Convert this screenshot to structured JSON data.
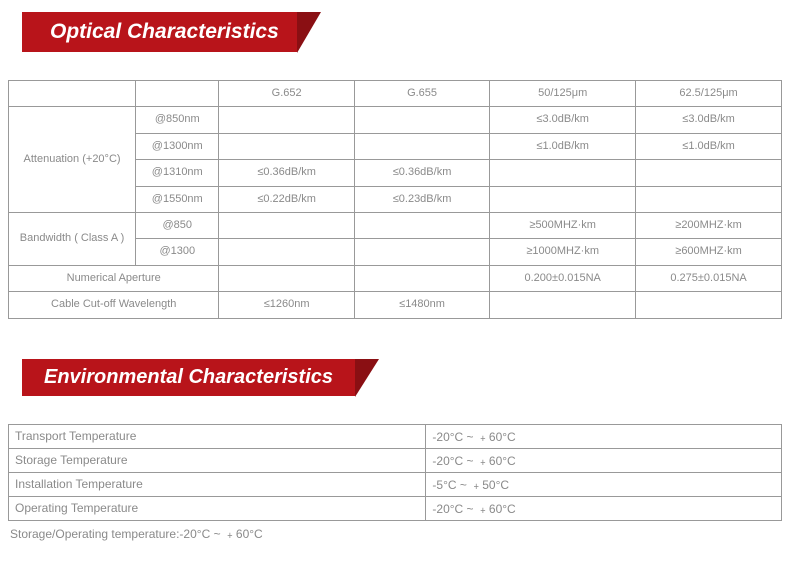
{
  "section1": {
    "title": "Optical Characteristics"
  },
  "section2": {
    "title": "Environmental Characteristics"
  },
  "t1": {
    "headers": [
      "",
      "",
      "G.652",
      "G.655",
      "50/125μm",
      "62.5/125μm"
    ],
    "rowlabels": {
      "attenuation": "Attenuation (+20°C)",
      "bandwidth": "Bandwidth      ( Class A )",
      "na": "Numerical Aperture",
      "cutoff": "Cable Cut-off Wavelength"
    },
    "sub": {
      "r1": "@850nm",
      "r2": "@1300nm",
      "r3": "@1310nm",
      "r4": "@1550nm",
      "r5": "@850",
      "r6": "@1300"
    },
    "cells": {
      "r1c5": "≤3.0dB/km",
      "r1c6": "≤3.0dB/km",
      "r2c5": "≤1.0dB/km",
      "r2c6": "≤1.0dB/km",
      "r3c3": "≤0.36dB/km",
      "r3c4": "≤0.36dB/km",
      "r4c3": "≤0.22dB/km",
      "r4c4": "≤0.23dB/km",
      "r5c5": "≥500MHZ·km",
      "r5c6": "≥200MHZ·km",
      "r6c5": "≥1000MHZ·km",
      "r6c6": "≥600MHZ·km",
      "nac5": "0.200±0.015NA",
      "nac6": "0.275±0.015NA",
      "cutc3": "≤1260nm",
      "cutc4": "≤1480nm"
    }
  },
  "t2": {
    "rows": [
      {
        "label": "Transport Temperature",
        "value": "-20°C ~ ﹢60°C"
      },
      {
        "label": "Storage Temperature",
        "value": "-20°C ~ ﹢60°C"
      },
      {
        "label": "Installation Temperature",
        "value": "-5°C ~ ﹢50°C"
      },
      {
        "label": "Operating Temperature",
        "value": "-20°C ~ ﹢60°C"
      }
    ]
  },
  "footnote": "Storage/Operating temperature:-20°C ~ ﹢60°C",
  "colors": {
    "brand": "#b8141a",
    "brand_dark": "#8a0f13",
    "text": "#8a8a8a",
    "border": "#999999",
    "bg": "#ffffff"
  }
}
